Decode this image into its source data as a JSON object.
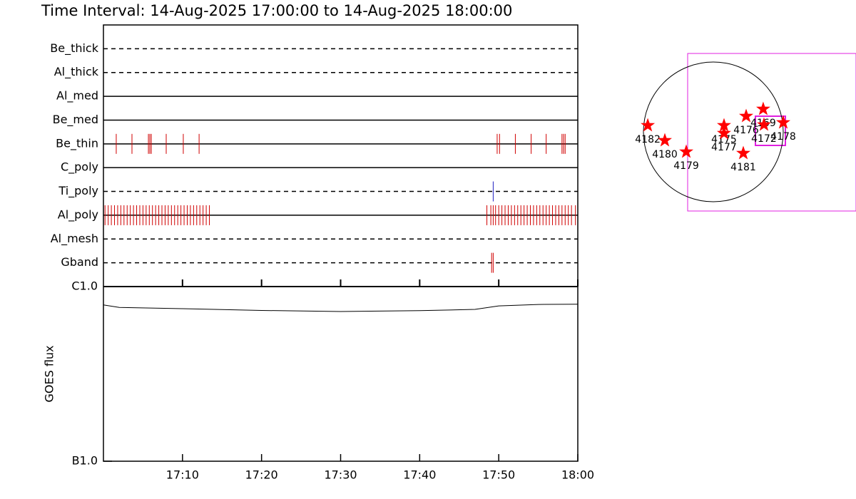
{
  "title": "Time Interval: 14-Aug-2025 17:00:00 to 14-Aug-2025 18:00:00",
  "chart_data": [
    {
      "type": "timeline",
      "xlim": [
        0,
        60
      ],
      "xticks": [
        {
          "value": 10,
          "label": "17:10"
        },
        {
          "value": 20,
          "label": "17:20"
        },
        {
          "value": 30,
          "label": "17:30"
        },
        {
          "value": 40,
          "label": "17:40"
        },
        {
          "value": 50,
          "label": "17:50"
        },
        {
          "value": 60,
          "label": "18:00"
        }
      ],
      "channels": [
        {
          "name": "Be_thick",
          "style": "dashed",
          "color": "#d00000",
          "events": []
        },
        {
          "name": "Al_thick",
          "style": "dashed",
          "color": "#d00000",
          "events": []
        },
        {
          "name": "Al_med",
          "style": "solid",
          "color": "#d00000",
          "events": []
        },
        {
          "name": "Be_med",
          "style": "solid",
          "color": "#d00000",
          "events": []
        },
        {
          "name": "Be_thin",
          "style": "solid",
          "color": "#d00000",
          "events": [
            1.62,
            3.61,
            5.69,
            5.87,
            6.05,
            7.94,
            10.1,
            12.1,
            49.8,
            50.1,
            52.1,
            54.1,
            56.0,
            58.0,
            58.2,
            58.4
          ]
        },
        {
          "name": "C_poly",
          "style": "solid",
          "color": "#d00000",
          "events": []
        },
        {
          "name": "Ti_poly",
          "style": "dashed",
          "color": "#2020c0",
          "events": [
            49.3
          ]
        },
        {
          "name": "Al_poly",
          "style": "solid",
          "color": "#d00000",
          "events": [
            0.2,
            0.6,
            1.0,
            1.4,
            1.8,
            2.2,
            2.6,
            3.0,
            3.4,
            3.8,
            4.2,
            4.6,
            5.0,
            5.4,
            5.8,
            6.2,
            6.6,
            7.0,
            7.4,
            7.8,
            8.2,
            8.6,
            9.0,
            9.4,
            9.8,
            10.2,
            10.6,
            11.0,
            11.4,
            11.8,
            12.2,
            12.6,
            13.0,
            13.4,
            48.5,
            49.0,
            49.3,
            49.6,
            50.0,
            50.4,
            50.8,
            51.2,
            51.6,
            52.0,
            52.4,
            52.8,
            53.2,
            53.6,
            54.0,
            54.4,
            54.8,
            55.2,
            55.6,
            56.0,
            56.4,
            56.8,
            57.2,
            57.6,
            58.0,
            58.4,
            58.8,
            59.2,
            59.7
          ]
        },
        {
          "name": "Al_mesh",
          "style": "dashed",
          "color": "#d00000",
          "events": []
        },
        {
          "name": "Gband",
          "style": "dashed",
          "color": "#d00000",
          "events": [
            49.1,
            49.3
          ]
        }
      ]
    },
    {
      "type": "line",
      "ylabel": "GOES flux",
      "log_scale": true,
      "xlim": [
        0,
        60
      ],
      "ylim": [
        1e-07,
        1e-06
      ],
      "yticks": [
        {
          "value": 1e-07,
          "label": "B1.0"
        },
        {
          "value": 1e-06,
          "label": "C1.0"
        }
      ],
      "x": [
        0,
        2,
        10,
        20,
        30,
        40,
        47,
        50,
        55,
        60
      ],
      "values": [
        7.85e-07,
        7.6e-07,
        7.47e-07,
        7.3e-07,
        7.2e-07,
        7.28e-07,
        7.4e-07,
        7.75e-07,
        7.9e-07,
        7.92e-07
      ],
      "color": "#000000"
    },
    {
      "type": "map",
      "solar_radius": 950,
      "color": "#ff0000",
      "labels": [
        "4182",
        "4180",
        "4179",
        "4175",
        "4177",
        "4176",
        "4169",
        "4172",
        "4178",
        "4181"
      ],
      "x": [
        -891,
        -659,
        -368,
        145,
        145,
        446,
        678,
        688,
        950,
        407
      ],
      "values": [
        87,
        -116,
        -271,
        87,
        -19,
        213,
        310,
        97,
        126,
        -291
      ]
    }
  ]
}
